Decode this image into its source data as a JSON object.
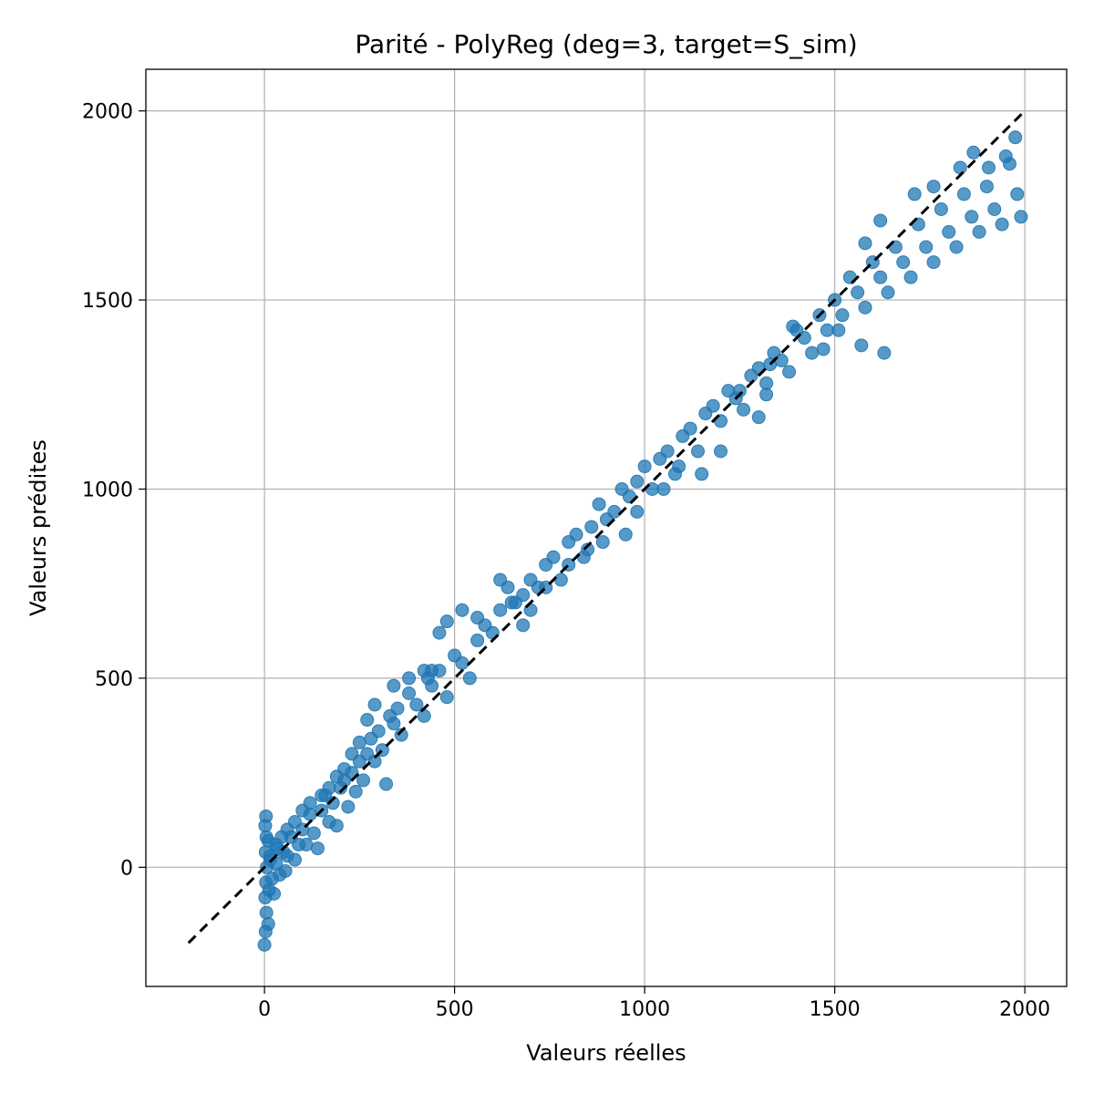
{
  "chart_data": {
    "type": "scatter",
    "title": "Parité - PolyReg (deg=3, target=S_sim)",
    "xlabel": "Valeurs réelles",
    "ylabel": "Valeurs prédites",
    "xlim": [
      -312,
      2110
    ],
    "ylim": [
      -315,
      2110
    ],
    "xticks": [
      0,
      500,
      1000,
      1500,
      2000
    ],
    "yticks": [
      0,
      500,
      1000,
      1500,
      2000
    ],
    "grid": true,
    "colors": {
      "points": "#1f77b4",
      "reference_line": "#000000",
      "grid": "#b0b0b0"
    },
    "reference_line": {
      "style": "dashed",
      "from": [
        -200,
        -200
      ],
      "to": [
        2000,
        2000
      ]
    },
    "series": [
      {
        "points": [
          [
            0,
            -205
          ],
          [
            3,
            -170
          ],
          [
            5,
            -120
          ],
          [
            2,
            -80
          ],
          [
            4,
            -40
          ],
          [
            6,
            0
          ],
          [
            3,
            40
          ],
          [
            5,
            80
          ],
          [
            2,
            110
          ],
          [
            4,
            135
          ],
          [
            10,
            -150
          ],
          [
            12,
            -60
          ],
          [
            15,
            20
          ],
          [
            20,
            -30
          ],
          [
            25,
            -70
          ],
          [
            30,
            10
          ],
          [
            35,
            50
          ],
          [
            40,
            -20
          ],
          [
            50,
            40
          ],
          [
            55,
            -10
          ],
          [
            60,
            30
          ],
          [
            70,
            80
          ],
          [
            80,
            20
          ],
          [
            90,
            60
          ],
          [
            100,
            100
          ],
          [
            110,
            60
          ],
          [
            120,
            140
          ],
          [
            130,
            90
          ],
          [
            140,
            50
          ],
          [
            150,
            150
          ],
          [
            160,
            190
          ],
          [
            170,
            120
          ],
          [
            180,
            170
          ],
          [
            190,
            110
          ],
          [
            200,
            210
          ],
          [
            210,
            230
          ],
          [
            220,
            160
          ],
          [
            230,
            250
          ],
          [
            240,
            200
          ],
          [
            250,
            280
          ],
          [
            260,
            230
          ],
          [
            270,
            300
          ],
          [
            280,
            340
          ],
          [
            290,
            280
          ],
          [
            300,
            360
          ],
          [
            310,
            310
          ],
          [
            320,
            220
          ],
          [
            330,
            400
          ],
          [
            340,
            380
          ],
          [
            350,
            420
          ],
          [
            360,
            350
          ],
          [
            380,
            460
          ],
          [
            400,
            430
          ],
          [
            420,
            400
          ],
          [
            440,
            480
          ],
          [
            460,
            520
          ],
          [
            480,
            450
          ],
          [
            500,
            560
          ],
          [
            520,
            540
          ],
          [
            540,
            500
          ],
          [
            560,
            600
          ],
          [
            580,
            640
          ],
          [
            600,
            620
          ],
          [
            620,
            680
          ],
          [
            640,
            740
          ],
          [
            660,
            700
          ],
          [
            680,
            720
          ],
          [
            700,
            760
          ],
          [
            720,
            740
          ],
          [
            740,
            800
          ],
          [
            760,
            820
          ],
          [
            780,
            760
          ],
          [
            800,
            860
          ],
          [
            820,
            880
          ],
          [
            840,
            820
          ],
          [
            860,
            900
          ],
          [
            880,
            960
          ],
          [
            900,
            920
          ],
          [
            920,
            940
          ],
          [
            940,
            1000
          ],
          [
            960,
            980
          ],
          [
            980,
            1020
          ],
          [
            1000,
            1060
          ],
          [
            1020,
            1000
          ],
          [
            1040,
            1080
          ],
          [
            1060,
            1100
          ],
          [
            1080,
            1040
          ],
          [
            1100,
            1140
          ],
          [
            1120,
            1160
          ],
          [
            1140,
            1100
          ],
          [
            1160,
            1200
          ],
          [
            1180,
            1220
          ],
          [
            1200,
            1180
          ],
          [
            1220,
            1260
          ],
          [
            1240,
            1240
          ],
          [
            1260,
            1210
          ],
          [
            1280,
            1300
          ],
          [
            1300,
            1320
          ],
          [
            1320,
            1280
          ],
          [
            1340,
            1360
          ],
          [
            1360,
            1340
          ],
          [
            1380,
            1310
          ],
          [
            1400,
            1420
          ],
          [
            1420,
            1400
          ],
          [
            1440,
            1360
          ],
          [
            1460,
            1460
          ],
          [
            1480,
            1420
          ],
          [
            1500,
            1500
          ],
          [
            1520,
            1460
          ],
          [
            1540,
            1560
          ],
          [
            1560,
            1520
          ],
          [
            1580,
            1480
          ],
          [
            1600,
            1600
          ],
          [
            1620,
            1560
          ],
          [
            1640,
            1520
          ],
          [
            1660,
            1640
          ],
          [
            1680,
            1600
          ],
          [
            1700,
            1560
          ],
          [
            1720,
            1700
          ],
          [
            1740,
            1640
          ],
          [
            1760,
            1600
          ],
          [
            1780,
            1740
          ],
          [
            1800,
            1680
          ],
          [
            1820,
            1640
          ],
          [
            1840,
            1780
          ],
          [
            1860,
            1720
          ],
          [
            1880,
            1680
          ],
          [
            1900,
            1800
          ],
          [
            1920,
            1740
          ],
          [
            1940,
            1700
          ],
          [
            1960,
            1860
          ],
          [
            1980,
            1780
          ],
          [
            1990,
            1720
          ],
          [
            1975,
            1930
          ],
          [
            1950,
            1880
          ],
          [
            1905,
            1850
          ],
          [
            1865,
            1890
          ],
          [
            1830,
            1850
          ],
          [
            1760,
            1800
          ],
          [
            1710,
            1780
          ],
          [
            1620,
            1710
          ],
          [
            1580,
            1650
          ],
          [
            1630,
            1360
          ],
          [
            1570,
            1380
          ],
          [
            1510,
            1420
          ],
          [
            1470,
            1370
          ],
          [
            1390,
            1430
          ],
          [
            1330,
            1330
          ],
          [
            1320,
            1250
          ],
          [
            1300,
            1190
          ],
          [
            1250,
            1260
          ],
          [
            1200,
            1100
          ],
          [
            1150,
            1040
          ],
          [
            1090,
            1060
          ],
          [
            1050,
            1000
          ],
          [
            980,
            940
          ],
          [
            950,
            880
          ],
          [
            890,
            860
          ],
          [
            850,
            840
          ],
          [
            800,
            800
          ],
          [
            740,
            740
          ],
          [
            700,
            680
          ],
          [
            680,
            640
          ],
          [
            650,
            700
          ],
          [
            620,
            760
          ],
          [
            560,
            660
          ],
          [
            520,
            680
          ],
          [
            480,
            650
          ],
          [
            460,
            620
          ],
          [
            440,
            520
          ],
          [
            430,
            500
          ],
          [
            420,
            520
          ],
          [
            380,
            500
          ],
          [
            340,
            480
          ],
          [
            290,
            430
          ],
          [
            270,
            390
          ],
          [
            250,
            330
          ],
          [
            230,
            300
          ],
          [
            210,
            260
          ],
          [
            190,
            240
          ],
          [
            170,
            210
          ],
          [
            150,
            190
          ],
          [
            120,
            170
          ],
          [
            100,
            150
          ],
          [
            80,
            120
          ],
          [
            60,
            100
          ],
          [
            45,
            80
          ],
          [
            30,
            60
          ],
          [
            15,
            30
          ],
          [
            10,
            70
          ]
        ]
      }
    ]
  }
}
